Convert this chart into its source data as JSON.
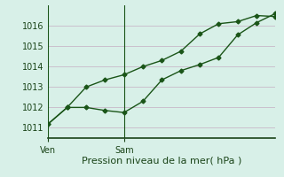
{
  "bg_color": "#cce8dc",
  "plot_bg_color": "#d8f0e8",
  "grid_color": "#c8b8c8",
  "line_color": "#1a5518",
  "marker_color": "#1a5518",
  "xlabel": "Pression niveau de la mer( hPa )",
  "xlabel_color": "#1a4418",
  "tick_color": "#1a4418",
  "label_fontsize": 7,
  "xlabel_fontsize": 8,
  "ylim": [
    1010.5,
    1017.0
  ],
  "yticks": [
    1011,
    1012,
    1013,
    1014,
    1015,
    1016
  ],
  "series1_x": [
    0,
    3,
    6,
    9,
    12,
    15,
    18,
    21,
    24,
    27,
    30,
    33,
    36
  ],
  "series1_y": [
    1011.2,
    1012.0,
    1012.0,
    1011.85,
    1011.75,
    1012.3,
    1013.35,
    1013.8,
    1014.1,
    1014.45,
    1015.55,
    1016.15,
    1016.6
  ],
  "series2_x": [
    0,
    3,
    6,
    9,
    12,
    15,
    18,
    21,
    24,
    27,
    30,
    33,
    36
  ],
  "series2_y": [
    1011.2,
    1012.0,
    1013.0,
    1013.35,
    1013.6,
    1014.0,
    1014.3,
    1014.75,
    1015.6,
    1016.1,
    1016.2,
    1016.5,
    1016.45
  ],
  "ven_x": 0,
  "sam_x": 12,
  "ven_label": "Ven",
  "sam_label": "Sam",
  "xlim": [
    0,
    36
  ]
}
